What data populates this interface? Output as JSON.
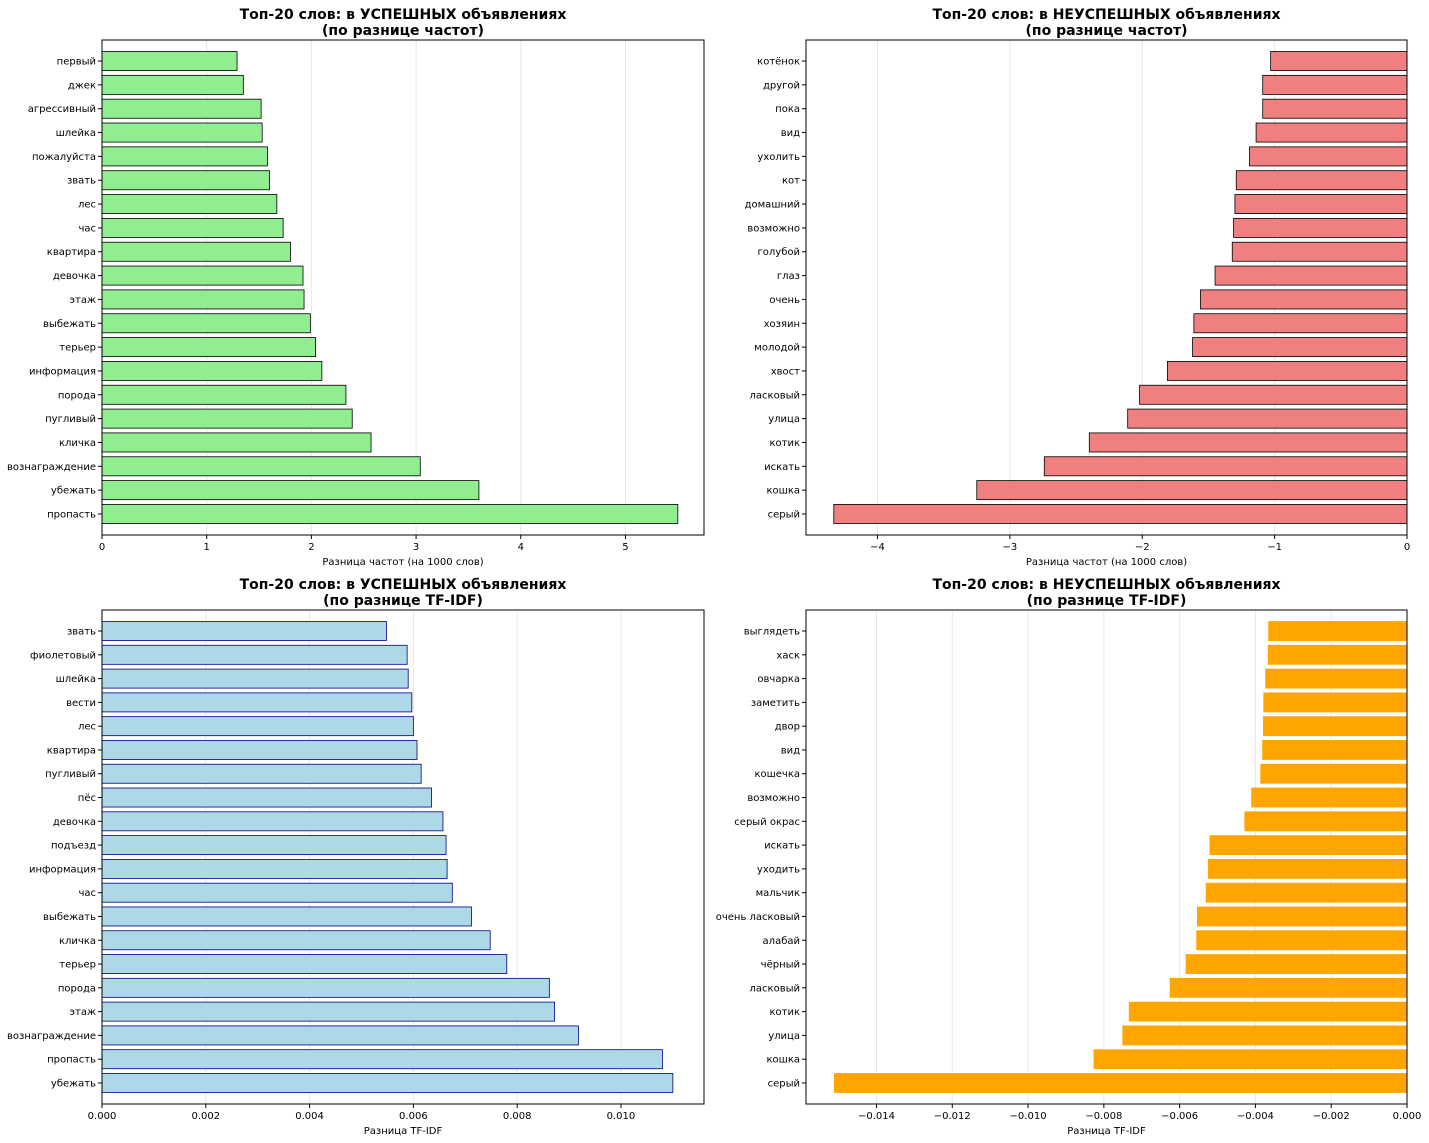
{
  "chart_data": [
    {
      "type": "bar",
      "orientation": "horizontal",
      "title": "Топ-20 слов: в УСПЕШНЫХ объявлениях\n(по разнице частот)",
      "xlabel": "Разница частот (на 1000 слов)",
      "ylabel": "",
      "xlim": [
        0,
        5.75
      ],
      "xticks": [
        "0",
        "1",
        "2",
        "3",
        "4",
        "5"
      ],
      "grid": "vertical",
      "color": "#90ee90",
      "edge_color": "#000000",
      "categories": [
        "первый",
        "джек",
        "агрессивный",
        "шлейка",
        "пожалуйста",
        "звать",
        "лес",
        "час",
        "квартира",
        "девочка",
        "этаж",
        "выбежать",
        "терьер",
        "информация",
        "порода",
        "пугливый",
        "кличка",
        "вознаграждение",
        "убежать",
        "пропасть"
      ],
      "values": [
        1.29,
        1.35,
        1.52,
        1.53,
        1.58,
        1.6,
        1.67,
        1.73,
        1.8,
        1.92,
        1.93,
        1.99,
        2.04,
        2.1,
        2.33,
        2.39,
        2.57,
        3.04,
        3.6,
        5.5
      ]
    },
    {
      "type": "bar",
      "orientation": "horizontal",
      "title": "Топ-20 слов: в НЕУСПЕШНЫХ объявлениях\n(по разнице частот)",
      "xlabel": "Разница частот (на 1000 слов)",
      "ylabel": "",
      "xlim": [
        -4.54,
        0
      ],
      "xticks": [
        "−4",
        "−3",
        "−2",
        "−1",
        "0"
      ],
      "grid": "vertical",
      "color": "#f08080",
      "edge_color": "#000000",
      "categories": [
        "котёнок",
        "другой",
        "пока",
        "вид",
        "ухолить",
        "кот",
        "домашний",
        "возможно",
        "голубой",
        "глаз",
        "очень",
        "хозяин",
        "молодой",
        "хвост",
        "ласковый",
        "улица",
        "котик",
        "искать",
        "кошка",
        "серый"
      ],
      "values": [
        -1.03,
        -1.09,
        -1.09,
        -1.14,
        -1.19,
        -1.29,
        -1.3,
        -1.31,
        -1.32,
        -1.45,
        -1.56,
        -1.61,
        -1.62,
        -1.81,
        -2.02,
        -2.11,
        -2.4,
        -2.74,
        -3.25,
        -4.33
      ]
    },
    {
      "type": "bar",
      "orientation": "horizontal",
      "title": "Топ-20 слов: в УСПЕШНЫХ объявлениях\n(по разнице TF-IDF)",
      "xlabel": "Разница TF-IDF",
      "ylabel": "",
      "xlim": [
        0,
        0.0116
      ],
      "xticks": [
        "0.000",
        "0.002",
        "0.004",
        "0.006",
        "0.008",
        "0.010"
      ],
      "grid": "vertical",
      "color": "#add8e6",
      "edge_color": "#00008b",
      "categories": [
        "звать",
        "фиолетовый",
        "шлейка",
        "вести",
        "лес",
        "квартира",
        "пугливый",
        "пёс",
        "девочка",
        "подъезд",
        "информация",
        "час",
        "выбежать",
        "кличка",
        "терьер",
        "порода",
        "этаж",
        "вознаграждение",
        "пропасть",
        "убежать"
      ],
      "values": [
        0.00548,
        0.00588,
        0.0059,
        0.00597,
        0.006,
        0.00607,
        0.00615,
        0.00635,
        0.00657,
        0.00663,
        0.00665,
        0.00675,
        0.00712,
        0.00748,
        0.0078,
        0.00862,
        0.00872,
        0.00918,
        0.0108,
        0.011
      ]
    },
    {
      "type": "bar",
      "orientation": "horizontal",
      "title": "Топ-20 слов: в НЕУСПЕШНЫХ объявлениях\n(по разнице TF-IDF)",
      "xlabel": "Разница TF-IDF",
      "ylabel": "",
      "xlim": [
        -0.01586,
        0
      ],
      "xticks": [
        "−0.014",
        "−0.012",
        "−0.010",
        "−0.008",
        "−0.006",
        "−0.004",
        "−0.002",
        "0.000"
      ],
      "grid": "vertical",
      "color": "#ffa500",
      "edge_color": "#ffa500",
      "categories": [
        "выглядеть",
        "хаск",
        "овчарка",
        "заметить",
        "двор",
        "вид",
        "кошечка",
        "возможно",
        "серый окрас",
        "искать",
        "уходить",
        "мальчик",
        "очень ласковый",
        "алабай",
        "чёрный",
        "ласковый",
        "котик",
        "улица",
        "кошка",
        "серый"
      ],
      "values": [
        -0.00365,
        -0.00366,
        -0.00373,
        -0.00378,
        -0.00379,
        -0.00381,
        -0.00386,
        -0.0041,
        -0.00428,
        -0.0052,
        -0.00524,
        -0.0053,
        -0.00553,
        -0.00555,
        -0.00583,
        -0.00625,
        -0.00733,
        -0.0075,
        -0.00826,
        -0.01511
      ]
    }
  ]
}
